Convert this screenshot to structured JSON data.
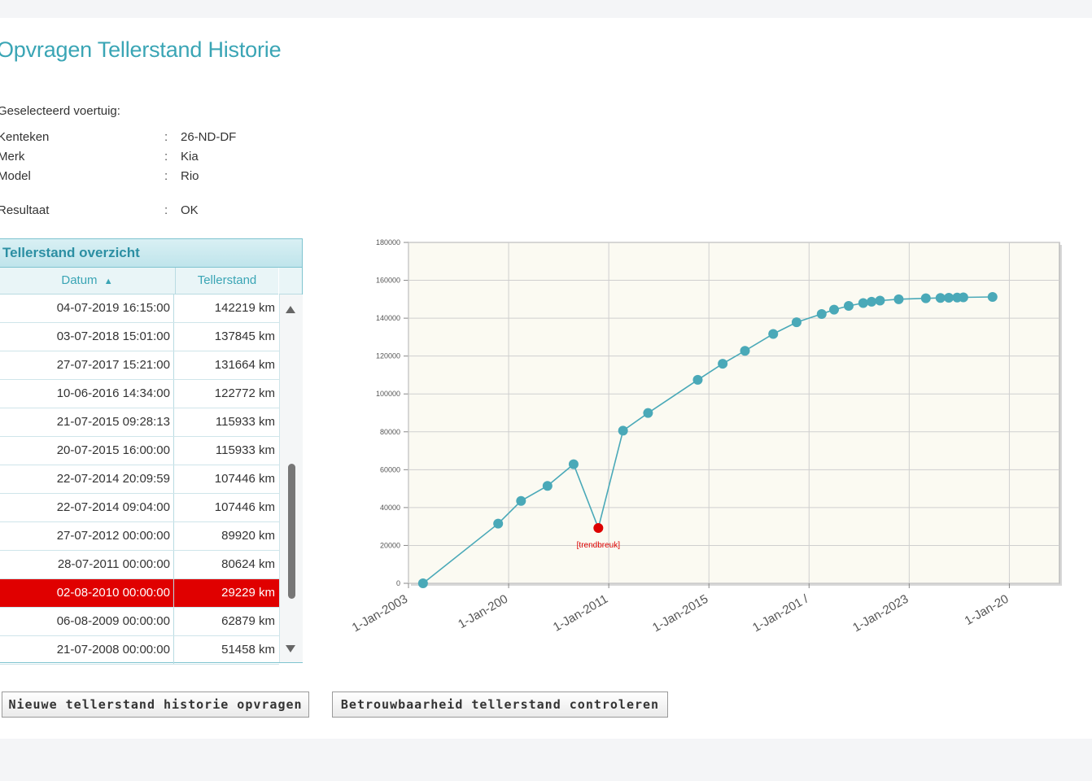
{
  "page": {
    "title": "Opvragen Tellerstand Historie"
  },
  "vehicle": {
    "selected_label": "Geselecteerd voertuig:",
    "fields": [
      {
        "label": "Kenteken",
        "value": "26-ND-DF"
      },
      {
        "label": "Merk",
        "value": "Kia"
      },
      {
        "label": "Model",
        "value": "Rio"
      }
    ],
    "result_label": "Resultaat",
    "result_value": "OK",
    "colon": ":"
  },
  "table": {
    "title": "Tellerstand overzicht",
    "col_date": "Datum",
    "col_reading": "Tellerstand",
    "sort_icon": "sort-icon",
    "alert_color": "#e00000",
    "rows": [
      {
        "date": "04-07-2019 16:15:00",
        "reading": "142219 km",
        "alert": false
      },
      {
        "date": "03-07-2018 15:01:00",
        "reading": "137845 km",
        "alert": false
      },
      {
        "date": "27-07-2017 15:21:00",
        "reading": "131664 km",
        "alert": false
      },
      {
        "date": "10-06-2016 14:34:00",
        "reading": "122772 km",
        "alert": false
      },
      {
        "date": "21-07-2015 09:28:13",
        "reading": "115933 km",
        "alert": false
      },
      {
        "date": "20-07-2015 16:00:00",
        "reading": "115933 km",
        "alert": false
      },
      {
        "date": "22-07-2014 20:09:59",
        "reading": "107446 km",
        "alert": false
      },
      {
        "date": "22-07-2014 09:04:00",
        "reading": "107446 km",
        "alert": false
      },
      {
        "date": "27-07-2012 00:00:00",
        "reading": "89920 km",
        "alert": false
      },
      {
        "date": "28-07-2011 00:00:00",
        "reading": "80624 km",
        "alert": false
      },
      {
        "date": "02-08-2010 00:00:00",
        "reading": "29229 km",
        "alert": true
      },
      {
        "date": "06-08-2009 00:00:00",
        "reading": "62879 km",
        "alert": false
      },
      {
        "date": "21-07-2008 00:00:00",
        "reading": "51458 km",
        "alert": false
      }
    ]
  },
  "buttons": {
    "new_history": "Nieuwe tellerstand historie opvragen",
    "check_reliability": "Betrouwbaarheid tellerstand controleren"
  },
  "colors": {
    "accent": "#3aa5b5",
    "point": "#4aa9b8",
    "alert_point": "#dd0000",
    "plot_bg": "#fbfaf2"
  },
  "chart_data": {
    "type": "line",
    "title": "",
    "xlabel": "",
    "ylabel": "",
    "ylim": [
      0,
      180000
    ],
    "yticks": [
      0,
      20000,
      40000,
      60000,
      80000,
      100000,
      120000,
      140000,
      160000,
      180000
    ],
    "xlim": [
      "2003-01-01",
      "2029-01-01"
    ],
    "xtick_labels": [
      "1-Jan-2003",
      "1-Jan-200",
      "1-Jan-2011",
      "1-Jan-2015",
      "1-Jan-201 /",
      "1-Jan-2023",
      "1-Jan-20"
    ],
    "grid": true,
    "annotation": {
      "text": "[trendbreuk]",
      "date": "2010-08-02",
      "value": 29229
    },
    "series": [
      {
        "points": [
          {
            "date": "2003-08-01",
            "value": 0
          },
          {
            "date": "2006-08-01",
            "value": 31500
          },
          {
            "date": "2007-07-01",
            "value": 43500
          },
          {
            "date": "2008-07-21",
            "value": 51458
          },
          {
            "date": "2009-08-06",
            "value": 62879
          },
          {
            "date": "2010-08-02",
            "value": 29229,
            "alert": true
          },
          {
            "date": "2011-07-28",
            "value": 80624
          },
          {
            "date": "2012-07-27",
            "value": 89920
          },
          {
            "date": "2014-07-22",
            "value": 107446
          },
          {
            "date": "2015-07-21",
            "value": 115933
          },
          {
            "date": "2016-06-10",
            "value": 122772
          },
          {
            "date": "2017-07-27",
            "value": 131664
          },
          {
            "date": "2018-07-03",
            "value": 137845
          },
          {
            "date": "2019-07-04",
            "value": 142219
          },
          {
            "date": "2020-01-01",
            "value": 144500
          },
          {
            "date": "2020-08-01",
            "value": 146500
          },
          {
            "date": "2021-03-01",
            "value": 148000
          },
          {
            "date": "2021-07-01",
            "value": 148700
          },
          {
            "date": "2021-11-01",
            "value": 149300
          },
          {
            "date": "2022-08-01",
            "value": 150000
          },
          {
            "date": "2023-09-01",
            "value": 150500
          },
          {
            "date": "2024-04-01",
            "value": 150700
          },
          {
            "date": "2024-08-01",
            "value": 150800
          },
          {
            "date": "2024-12-01",
            "value": 150900
          },
          {
            "date": "2025-03-01",
            "value": 151000
          },
          {
            "date": "2026-05-01",
            "value": 151200
          }
        ]
      }
    ]
  }
}
